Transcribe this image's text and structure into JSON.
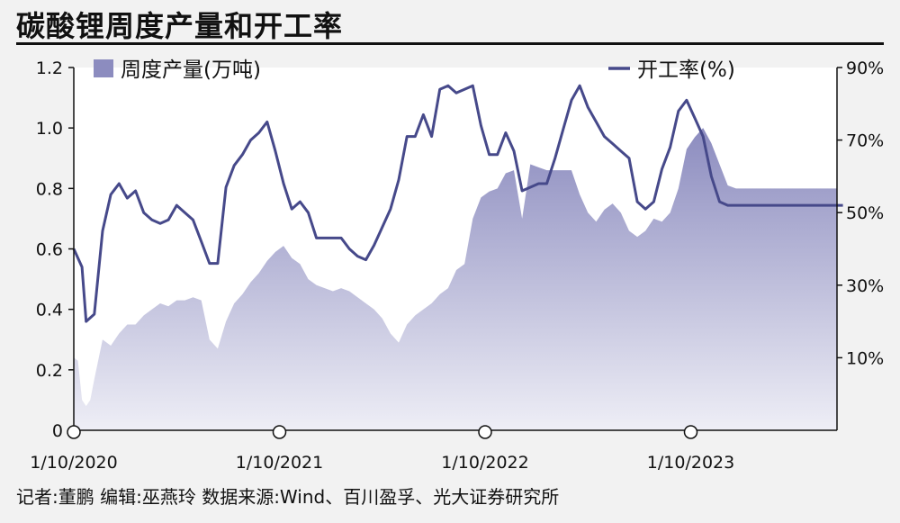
{
  "title": "碳酸锂周度产量和开工率",
  "footer": "记者:董鹏   编辑:巫燕玲   数据来源:Wind、百川盈孚、光大证券研究所",
  "chart_data": {
    "type": "area",
    "grid": false,
    "x_ticks": [
      "1/10/2020",
      "1/10/2021",
      "1/10/2022",
      "1/10/2023"
    ],
    "y_left": {
      "lim": [
        0,
        1.2
      ],
      "ticks": [
        "0",
        "0.2",
        "0.4",
        "0.6",
        "0.8",
        "1.0",
        "1.2"
      ]
    },
    "y_right": {
      "lim": [
        -10,
        90
      ],
      "ticks": [
        "10%",
        "30%",
        "50%",
        "70%",
        "90%"
      ]
    },
    "legend": {
      "placement": "top"
    },
    "colors": {
      "area_top": "#8c8cbf",
      "area_bottom": "#eeeef6",
      "line": "#46498a"
    },
    "series": [
      {
        "name": "周度产量(万吨)",
        "axis": "left",
        "type": "area",
        "t": [
          0,
          0.02,
          0.04,
          0.06,
          0.08,
          0.1,
          0.14,
          0.18,
          0.22,
          0.26,
          0.3,
          0.34,
          0.38,
          0.42,
          0.46,
          0.5,
          0.54,
          0.58,
          0.62,
          0.66,
          0.7,
          0.74,
          0.78,
          0.82,
          0.86,
          0.9,
          0.94,
          0.98,
          1.02,
          1.06,
          1.1,
          1.14,
          1.18,
          1.22,
          1.26,
          1.3,
          1.34,
          1.38,
          1.42,
          1.46,
          1.5,
          1.54,
          1.58,
          1.62,
          1.66,
          1.7,
          1.74,
          1.78,
          1.82,
          1.86,
          1.9,
          1.94,
          1.98,
          2.02,
          2.06,
          2.1,
          2.14,
          2.18,
          2.22,
          2.26,
          2.3,
          2.34,
          2.38,
          2.42,
          2.46,
          2.5,
          2.54,
          2.58,
          2.62,
          2.66,
          2.7,
          2.74,
          2.78,
          2.82,
          2.86,
          2.9,
          2.94,
          2.98,
          3.02,
          3.06,
          3.1,
          3.14,
          3.18,
          3.22,
          3.26,
          3.3,
          3.34,
          3.38,
          3.42,
          3.46,
          3.5,
          3.54,
          3.58,
          3.62,
          3.66,
          3.7,
          3.74,
          3.78,
          3.82,
          3.86,
          3.9,
          3.94,
          3.98
        ],
        "values": [
          0.24,
          0.23,
          0.1,
          0.08,
          0.1,
          0.17,
          0.3,
          0.28,
          0.32,
          0.35,
          0.35,
          0.38,
          0.4,
          0.42,
          0.41,
          0.43,
          0.43,
          0.44,
          0.43,
          0.3,
          0.27,
          0.36,
          0.42,
          0.45,
          0.49,
          0.52,
          0.56,
          0.59,
          0.61,
          0.57,
          0.55,
          0.5,
          0.48,
          0.47,
          0.46,
          0.47,
          0.46,
          0.44,
          0.42,
          0.4,
          0.37,
          0.32,
          0.29,
          0.35,
          0.38,
          0.4,
          0.42,
          0.45,
          0.47,
          0.53,
          0.55,
          0.7,
          0.77,
          0.79,
          0.8,
          0.85,
          0.86,
          0.7,
          0.88,
          0.87,
          0.86,
          0.86,
          0.86,
          0.86,
          0.78,
          0.72,
          0.69,
          0.73,
          0.75,
          0.72,
          0.66,
          0.64,
          0.66,
          0.7,
          0.69,
          0.72,
          0.8,
          0.93,
          0.97,
          1.0,
          0.95,
          0.88,
          0.81,
          0.8,
          0.8,
          0.8,
          0.8,
          0.8,
          0.8,
          0.8,
          0.8,
          0.8,
          0.8,
          0.8,
          0.8,
          0.8,
          0.8,
          0.8,
          0.8,
          0.8,
          0.8,
          0.8,
          0.8
        ]
      },
      {
        "name": "开工率(%)",
        "axis": "right",
        "type": "line",
        "t": [
          0,
          0.04,
          0.06,
          0.1,
          0.14,
          0.18,
          0.22,
          0.26,
          0.3,
          0.34,
          0.38,
          0.42,
          0.46,
          0.5,
          0.54,
          0.58,
          0.62,
          0.66,
          0.7,
          0.74,
          0.78,
          0.82,
          0.86,
          0.9,
          0.94,
          0.98,
          1.02,
          1.06,
          1.1,
          1.14,
          1.18,
          1.22,
          1.26,
          1.3,
          1.34,
          1.38,
          1.42,
          1.46,
          1.5,
          1.54,
          1.58,
          1.62,
          1.66,
          1.7,
          1.74,
          1.78,
          1.82,
          1.86,
          1.9,
          1.94,
          1.98,
          2.02,
          2.06,
          2.1,
          2.14,
          2.18,
          2.22,
          2.26,
          2.3,
          2.34,
          2.38,
          2.42,
          2.46,
          2.5,
          2.54,
          2.58,
          2.62,
          2.66,
          2.7,
          2.74,
          2.78,
          2.82,
          2.86,
          2.9,
          2.94,
          2.98,
          3.02,
          3.06,
          3.1,
          3.14,
          3.18,
          3.22,
          3.26,
          3.3,
          3.34,
          3.38,
          3.42,
          3.46,
          3.5,
          3.54,
          3.58,
          3.62,
          3.66,
          3.7,
          3.74
        ],
        "values": [
          40,
          35,
          20,
          22,
          45,
          55,
          58,
          54,
          56,
          50,
          48,
          47,
          48,
          52,
          50,
          48,
          42,
          36,
          36,
          57,
          63,
          66,
          70,
          72,
          75,
          67,
          58,
          51,
          53,
          50,
          43,
          43,
          43,
          43,
          40,
          38,
          37,
          41,
          46,
          51,
          59,
          71,
          71,
          77,
          71,
          84,
          85,
          83,
          84,
          85,
          74,
          66,
          66,
          72,
          67,
          56,
          57,
          58,
          58,
          65,
          73,
          81,
          85,
          79,
          75,
          71,
          69,
          67,
          65,
          53,
          51,
          53,
          62,
          68,
          78,
          81,
          76,
          71,
          60,
          53,
          52,
          52,
          52,
          52,
          52,
          52,
          52,
          52,
          52,
          52,
          52,
          52,
          52,
          52,
          52
        ]
      }
    ]
  }
}
